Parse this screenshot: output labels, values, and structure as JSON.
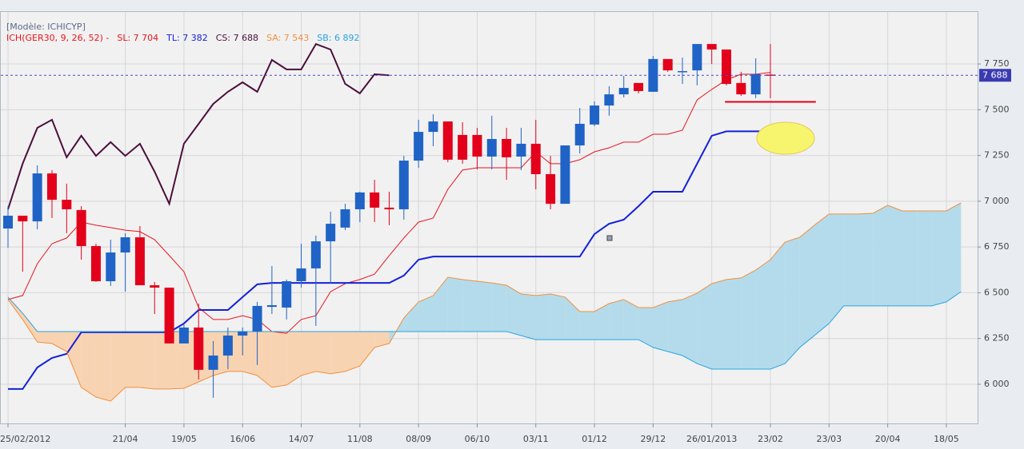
{
  "chart_data": {
    "type": "candlestick",
    "header": "[Modèle: ICHICYP]",
    "indicator": "ICH(GER30, 9, 26, 52) -",
    "categories": [
      "25/02/2012",
      null,
      null,
      null,
      null,
      null,
      null,
      null,
      "21/04",
      null,
      null,
      null,
      "19/05",
      null,
      null,
      null,
      "16/06",
      null,
      null,
      null,
      "14/07",
      null,
      null,
      null,
      "11/08",
      null,
      null,
      null,
      "08/09",
      null,
      null,
      null,
      "06/10",
      null,
      null,
      null,
      "03/11",
      null,
      null,
      null,
      "01/12",
      null,
      null,
      null,
      "29/12",
      null,
      null,
      null,
      "26/01/2013",
      null,
      null,
      null,
      "23/02",
      null,
      null,
      null,
      "23/03",
      null,
      null,
      null,
      "20/04",
      null,
      null,
      null,
      "18/05",
      null
    ],
    "open": [
      6851,
      6921,
      6890,
      7152,
      7008,
      6952,
      6755,
      6563,
      6720,
      6803,
      6541,
      6528,
      6223,
      6310,
      6079,
      6157,
      6266,
      6288,
      6423,
      6419,
      6563,
      6633,
      6781,
      6856,
      6956,
      7048,
      6965,
      6956,
      7222,
      7379,
      7436,
      7362,
      7362,
      7244,
      7340,
      7244,
      7314,
      7148,
      6986,
      7305,
      7419,
      7523,
      7584,
      7646,
      7598,
      7777,
      7707,
      7715,
      7859,
      7829,
      7646,
      7584,
      7692,
      null,
      null,
      null,
      null,
      null,
      null,
      null,
      null,
      null,
      null,
      null,
      null,
      null
    ],
    "high": [
      6973,
      6921,
      7196,
      7170,
      7096,
      6973,
      6768,
      6790,
      6825,
      6864,
      6559,
      6528,
      6332,
      6441,
      6236,
      6310,
      6310,
      6450,
      6646,
      6572,
      6768,
      6812,
      6943,
      6986,
      7052,
      7117,
      7052,
      7248,
      7445,
      7475,
      7436,
      7432,
      7401,
      7467,
      7401,
      7401,
      7445,
      7248,
      7305,
      7510,
      7545,
      7628,
      7685,
      7646,
      7794,
      7777,
      7785,
      7859,
      7859,
      7829,
      7707,
      7781,
      7859,
      null,
      null,
      null,
      null,
      null,
      null,
      null,
      null,
      null,
      null,
      null,
      null,
      null
    ],
    "low": [
      6746,
      6615,
      6847,
      6908,
      6825,
      6681,
      6559,
      6537,
      6506,
      6541,
      6384,
      6223,
      6223,
      6026,
      5926,
      6083,
      6157,
      6105,
      6384,
      6354,
      6528,
      6319,
      6550,
      6842,
      6886,
      6886,
      6869,
      6899,
      7183,
      7301,
      7213,
      7205,
      7174,
      7174,
      7117,
      7170,
      7065,
      6956,
      6986,
      7261,
      7410,
      7467,
      7567,
      7589,
      7598,
      7707,
      7641,
      7633,
      7750,
      7633,
      7576,
      7563,
      7563,
      null,
      null,
      null,
      null,
      null,
      null,
      null,
      null,
      null,
      null,
      null,
      null,
      null
    ],
    "close": [
      6921,
      6890,
      7152,
      7008,
      6956,
      6755,
      6563,
      6720,
      6803,
      6541,
      6528,
      6223,
      6310,
      6079,
      6157,
      6266,
      6288,
      6428,
      6432,
      6563,
      6633,
      6781,
      6877,
      6956,
      7048,
      6965,
      6956,
      7222,
      7379,
      7436,
      7227,
      7227,
      7244,
      7340,
      7240,
      7314,
      7148,
      6986,
      7305,
      7423,
      7523,
      7584,
      7619,
      7602,
      7777,
      7715,
      7711,
      7859,
      7829,
      7641,
      7584,
      7694,
      7688,
      null,
      null,
      null,
      null,
      null,
      null,
      null,
      null,
      null,
      null,
      null,
      null,
      null
    ],
    "up_color": "#1f63c6",
    "down_color": "#e3001b",
    "series": [
      {
        "name": "SL: 7 704",
        "color": "#e8141e",
        "values": [
          6463,
          6485,
          6659,
          6768,
          6799,
          6886,
          6869,
          6856,
          6842,
          6834,
          6790,
          6703,
          6615,
          6419,
          6354,
          6354,
          6375,
          6354,
          6288,
          6279,
          6354,
          6375,
          6506,
          6550,
          6572,
          6602,
          6703,
          6799,
          6886,
          6908,
          7065,
          7170,
          7183,
          7183,
          7183,
          7183,
          7270,
          7205,
          7205,
          7227,
          7270,
          7292,
          7323,
          7323,
          7366,
          7366,
          7388,
          7554,
          7611,
          7663,
          7694,
          7694,
          7704,
          null,
          null,
          null,
          null,
          null,
          null,
          null,
          null,
          null,
          null,
          null,
          null,
          null
        ]
      },
      {
        "name": "TL: 7 382",
        "color": "#1420d8",
        "values": [
          5974,
          5974,
          6092,
          6144,
          6166,
          6284,
          6284,
          6284,
          6284,
          6284,
          6284,
          6284,
          6332,
          6406,
          6406,
          6406,
          6476,
          6546,
          6554,
          6554,
          6554,
          6554,
          6554,
          6554,
          6554,
          6554,
          6554,
          6594,
          6681,
          6698,
          6698,
          6698,
          6698,
          6698,
          6698,
          6698,
          6698,
          6698,
          6698,
          6698,
          6821,
          6877,
          6899,
          6973,
          7052,
          7052,
          7052,
          7205,
          7358,
          7382,
          7382,
          7382,
          7382,
          null,
          null,
          null,
          null,
          null,
          null,
          null,
          null,
          null,
          null,
          null,
          null,
          null
        ]
      },
      {
        "name": "CS: 7 688",
        "color": "#4b0f3c",
        "values": [
          6956,
          7205,
          7401,
          7445,
          7240,
          7358,
          7248,
          7323,
          7248,
          7314,
          7161,
          6986,
          7314,
          7423,
          7532,
          7598,
          7650,
          7598,
          7772,
          7720,
          7720,
          7859,
          7829,
          7641,
          7589,
          7694,
          7688,
          null,
          null,
          null,
          null,
          null,
          null,
          null,
          null,
          null,
          null,
          null,
          null,
          null,
          null,
          null,
          null,
          null,
          null,
          null,
          null,
          null,
          null,
          null,
          null,
          null,
          null,
          null,
          null,
          null,
          null,
          null,
          null,
          null,
          null,
          null,
          null,
          null,
          null,
          null
        ]
      },
      {
        "name": "SA: 7 543",
        "color": "#f0903c",
        "values": [
          6463,
          6354,
          6231,
          6223,
          6179,
          5983,
          5930,
          5908,
          5983,
          5983,
          5974,
          5974,
          5978,
          6013,
          6048,
          6070,
          6070,
          6048,
          5983,
          5996,
          6048,
          6070,
          6057,
          6070,
          6100,
          6201,
          6223,
          6362,
          6450,
          6485,
          6585,
          6572,
          6563,
          6554,
          6541,
          6493,
          6485,
          6493,
          6476,
          6397,
          6397,
          6441,
          6463,
          6419,
          6419,
          6450,
          6463,
          6498,
          6550,
          6572,
          6581,
          6624,
          6681,
          6777,
          6803,
          6869,
          6930,
          6930,
          6930,
          6934,
          6978,
          6947,
          6947,
          6947,
          6947,
          6991
        ]
      },
      {
        "name": "SB: 6 892",
        "color": "#2aa4e0",
        "values": [
          6476,
          6388,
          6288,
          6288,
          6288,
          6288,
          6288,
          6288,
          6288,
          6288,
          6288,
          6288,
          6288,
          6288,
          6288,
          6288,
          6288,
          6288,
          6288,
          6288,
          6288,
          6288,
          6288,
          6288,
          6288,
          6288,
          6288,
          6288,
          6288,
          6288,
          6288,
          6288,
          6288,
          6288,
          6288,
          6266,
          6244,
          6244,
          6244,
          6244,
          6244,
          6244,
          6244,
          6244,
          6201,
          6179,
          6157,
          6113,
          6083,
          6083,
          6083,
          6083,
          6083,
          6113,
          6201,
          6266,
          6332,
          6428,
          6428,
          6428,
          6428,
          6428,
          6428,
          6428,
          6450,
          6506
        ]
      }
    ],
    "cloud_up_color": "#b4dbeb",
    "cloud_down_color": "#f8d3b2",
    "ylim": [
      5786,
      8034
    ],
    "yticks": [
      {
        "value": 6000,
        "label": "6 000"
      },
      {
        "value": 6250,
        "label": "6 250"
      },
      {
        "value": 6500,
        "label": "6 500"
      },
      {
        "value": 6750,
        "label": "6 750"
      },
      {
        "value": 7000,
        "label": "7 000"
      },
      {
        "value": 7250,
        "label": "7 250"
      },
      {
        "value": 7500,
        "label": "7 500"
      },
      {
        "value": 7750,
        "label": "7 750"
      }
    ],
    "grid": true,
    "price_line": {
      "value": 7688,
      "label": "7 688",
      "color": "#4a4ad0"
    },
    "level": {
      "value": 7543,
      "color": "#e3001b"
    }
  }
}
